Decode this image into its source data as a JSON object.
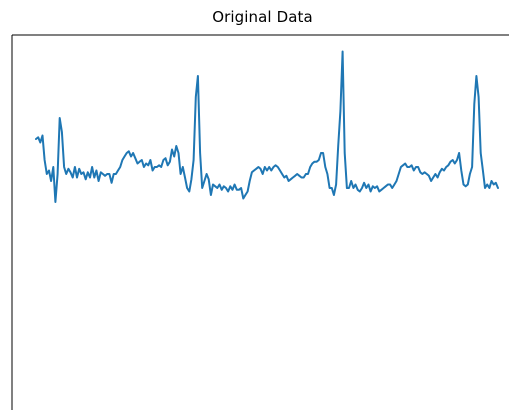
{
  "chart_data": {
    "type": "line",
    "title": "Original Data",
    "xlabel": "",
    "ylabel": "",
    "grid": false,
    "axes_visible": false,
    "series": [
      {
        "color": "#1f77b4",
        "y": [
          0.74,
          0.745,
          0.73,
          0.75,
          0.68,
          0.64,
          0.65,
          0.62,
          0.66,
          0.56,
          0.64,
          0.8,
          0.76,
          0.66,
          0.64,
          0.655,
          0.645,
          0.63,
          0.66,
          0.63,
          0.655,
          0.64,
          0.645,
          0.625,
          0.645,
          0.63,
          0.66,
          0.63,
          0.65,
          0.62,
          0.645,
          0.64,
          0.635,
          0.64,
          0.64,
          0.615,
          0.64,
          0.64,
          0.65,
          0.66,
          0.68,
          0.69,
          0.7,
          0.705,
          0.69,
          0.7,
          0.685,
          0.67,
          0.675,
          0.68,
          0.66,
          0.67,
          0.665,
          0.68,
          0.65,
          0.66,
          0.66,
          0.665,
          0.66,
          0.68,
          0.685,
          0.665,
          0.675,
          0.71,
          0.69,
          0.72,
          0.7,
          0.64,
          0.66,
          0.63,
          0.6,
          0.59,
          0.625,
          0.68,
          0.86,
          0.92,
          0.7,
          0.6,
          0.62,
          0.64,
          0.625,
          0.58,
          0.61,
          0.605,
          0.6,
          0.61,
          0.595,
          0.605,
          0.6,
          0.59,
          0.605,
          0.595,
          0.61,
          0.595,
          0.595,
          0.6,
          0.57,
          0.58,
          0.59,
          0.62,
          0.645,
          0.65,
          0.655,
          0.66,
          0.655,
          0.64,
          0.66,
          0.65,
          0.66,
          0.65,
          0.66,
          0.665,
          0.66,
          0.65,
          0.64,
          0.63,
          0.635,
          0.62,
          0.625,
          0.63,
          0.635,
          0.64,
          0.635,
          0.63,
          0.63,
          0.64,
          0.64,
          0.66,
          0.67,
          0.675,
          0.675,
          0.68,
          0.7,
          0.7,
          0.66,
          0.64,
          0.6,
          0.6,
          0.58,
          0.61,
          0.72,
          0.82,
          0.99,
          0.7,
          0.6,
          0.6,
          0.62,
          0.6,
          0.61,
          0.595,
          0.59,
          0.6,
          0.615,
          0.6,
          0.61,
          0.59,
          0.605,
          0.6,
          0.605,
          0.59,
          0.595,
          0.6,
          0.605,
          0.61,
          0.61,
          0.6,
          0.61,
          0.62,
          0.64,
          0.66,
          0.665,
          0.67,
          0.66,
          0.66,
          0.665,
          0.65,
          0.66,
          0.66,
          0.645,
          0.64,
          0.645,
          0.64,
          0.635,
          0.62,
          0.63,
          0.64,
          0.63,
          0.645,
          0.655,
          0.65,
          0.66,
          0.665,
          0.675,
          0.68,
          0.67,
          0.68,
          0.7,
          0.65,
          0.61,
          0.605,
          0.61,
          0.64,
          0.66,
          0.84,
          0.92,
          0.86,
          0.7,
          0.65,
          0.6,
          0.61,
          0.6,
          0.62,
          0.61,
          0.615,
          0.6
        ],
        "raw_note": ""
      }
    ]
  }
}
